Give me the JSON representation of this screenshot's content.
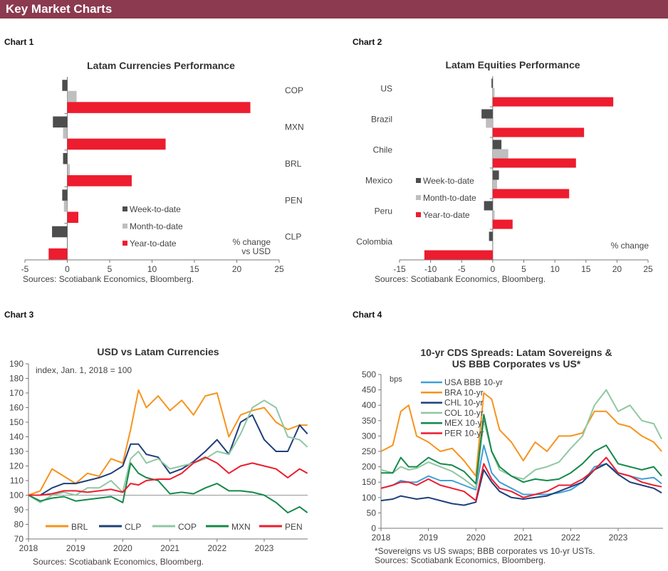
{
  "header": {
    "title": "Key Market Charts"
  },
  "chart_labels": [
    "Chart 1",
    "Chart 2",
    "Chart 3",
    "Chart 4"
  ],
  "colors": {
    "header": "#8b3a50",
    "wtd": "#4d4d4d",
    "mtd": "#bfbfbf",
    "ytd": "#ed1c2e"
  },
  "chart_data": [
    {
      "type": "bar",
      "orientation": "horizontal",
      "title": "Latam  Currencies Performance",
      "categories": [
        "COP",
        "MXN",
        "BRL",
        "PEN",
        "CLP"
      ],
      "series": [
        {
          "name": "Week-to-date",
          "color": "#4d4d4d",
          "values": [
            -0.6,
            -1.7,
            -0.5,
            -0.6,
            -1.8
          ]
        },
        {
          "name": "Month-to-date",
          "color": "#bfbfbf",
          "values": [
            1.1,
            -0.5,
            0.3,
            -0.4,
            0
          ]
        },
        {
          "name": "Year-to-date",
          "color": "#ed1c2e",
          "values": [
            21.6,
            11.6,
            7.6,
            1.3,
            -2.2
          ]
        }
      ],
      "xlim": [
        -5,
        25
      ],
      "xticks": [
        "-5",
        "0",
        "5",
        "10",
        "15",
        "20",
        "25"
      ],
      "unit_label": [
        "% change",
        "vs USD"
      ],
      "legend": "bottom-center",
      "source": "Sources: Scotiabank Economics, Bloomberg."
    },
    {
      "type": "bar",
      "orientation": "horizontal",
      "title": "Latam Equities Performance",
      "categories": [
        "US",
        "Brazil",
        "Chile",
        "Mexico",
        "Peru",
        "Colombia"
      ],
      "series": [
        {
          "name": "Week-to-date",
          "color": "#4d4d4d",
          "values": [
            -0.2,
            -1.8,
            1.4,
            1.0,
            -1.4,
            -0.6
          ]
        },
        {
          "name": "Month-to-date",
          "color": "#bfbfbf",
          "values": [
            0.3,
            -1.1,
            2.5,
            0.7,
            0.3,
            0
          ]
        },
        {
          "name": "Year-to-date",
          "color": "#ed1c2e",
          "values": [
            19.4,
            14.7,
            13.4,
            12.3,
            3.2,
            -11.0
          ]
        }
      ],
      "xlim": [
        -15,
        25
      ],
      "xticks": [
        "-15",
        "-10",
        "-5",
        "0",
        "5",
        "10",
        "15",
        "20",
        "25"
      ],
      "unit_label": [
        "% change"
      ],
      "legend": "left",
      "source": "Sources: Scotiabank Economics, Bloomberg."
    },
    {
      "type": "line",
      "title": "USD vs Latam Currencies",
      "annotation": "index, Jan. 1, 2018 = 100",
      "ylim": [
        70,
        190
      ],
      "yticks": [
        "70",
        "80",
        "90",
        "100",
        "110",
        "120",
        "130",
        "140",
        "150",
        "160",
        "170",
        "180",
        "190"
      ],
      "xticks": [
        "2018",
        "2019",
        "2020",
        "2021",
        "2022",
        "2023"
      ],
      "reference_line": 100,
      "legend": "bottom",
      "x": [
        "2018-01",
        "2018-04",
        "2018-07",
        "2018-10",
        "2019-01",
        "2019-04",
        "2019-07",
        "2019-10",
        "2020-01",
        "2020-03",
        "2020-05",
        "2020-07",
        "2020-10",
        "2021-01",
        "2021-04",
        "2021-07",
        "2021-10",
        "2022-01",
        "2022-04",
        "2022-07",
        "2022-10",
        "2023-01",
        "2023-04",
        "2023-07",
        "2023-10",
        "2023-12"
      ],
      "series": [
        {
          "name": "BRL",
          "color": "#f7931e",
          "values": [
            100,
            103,
            118,
            113,
            108,
            115,
            113,
            125,
            122,
            145,
            172,
            160,
            168,
            158,
            165,
            155,
            168,
            170,
            140,
            155,
            158,
            160,
            150,
            145,
            148,
            148
          ]
        },
        {
          "name": "CLP",
          "color": "#1f3f7a",
          "values": [
            100,
            100,
            105,
            108,
            108,
            110,
            112,
            115,
            120,
            135,
            135,
            128,
            126,
            115,
            118,
            123,
            130,
            138,
            128,
            150,
            155,
            138,
            130,
            130,
            148,
            142
          ]
        },
        {
          "name": "COP",
          "color": "#8fc7a3",
          "values": [
            100,
            95,
            100,
            102,
            100,
            105,
            105,
            110,
            102,
            125,
            130,
            122,
            125,
            118,
            120,
            122,
            125,
            130,
            128,
            142,
            160,
            165,
            160,
            140,
            138,
            133
          ]
        },
        {
          "name": "MXN",
          "color": "#14894a",
          "values": [
            100,
            96,
            98,
            99,
            96,
            97,
            98,
            99,
            95,
            122,
            115,
            112,
            110,
            101,
            102,
            101,
            105,
            108,
            103,
            103,
            102,
            100,
            95,
            88,
            92,
            88
          ]
        },
        {
          "name": "PEN",
          "color": "#ed1c2e",
          "values": [
            100,
            100,
            101,
            103,
            103,
            102,
            103,
            104,
            102,
            108,
            107,
            110,
            111,
            111,
            115,
            122,
            126,
            122,
            115,
            120,
            122,
            120,
            118,
            112,
            118,
            115
          ]
        }
      ],
      "source": "Sources: Scotiabank Economics, Bloomberg."
    },
    {
      "type": "line",
      "title": [
        "10-yr CDS Spreads: Latam Sovereigns &",
        "US BBB Corporates vs US*"
      ],
      "ylabel": "bps",
      "ylim": [
        0,
        500
      ],
      "yticks": [
        "0",
        "50",
        "100",
        "150",
        "200",
        "250",
        "300",
        "350",
        "400",
        "450",
        "500"
      ],
      "xticks": [
        "2018",
        "2019",
        "2020",
        "2021",
        "2022",
        "2023"
      ],
      "legend": "top-left",
      "x": [
        "2018-01",
        "2018-04",
        "2018-06",
        "2018-08",
        "2018-10",
        "2019-01",
        "2019-04",
        "2019-07",
        "2019-10",
        "2020-01",
        "2020-03",
        "2020-05",
        "2020-07",
        "2020-10",
        "2021-01",
        "2021-04",
        "2021-07",
        "2021-10",
        "2022-01",
        "2022-04",
        "2022-07",
        "2022-10",
        "2023-01",
        "2023-04",
        "2023-07",
        "2023-10",
        "2023-12"
      ],
      "series": [
        {
          "name": "USA BBB 10-yr",
          "color": "#3fa0d8",
          "values": [
            130,
            140,
            155,
            150,
            150,
            170,
            155,
            155,
            140,
            125,
            270,
            180,
            150,
            130,
            110,
            110,
            110,
            115,
            125,
            150,
            200,
            210,
            180,
            170,
            160,
            165,
            145
          ]
        },
        {
          "name": "BRA 10-yr",
          "color": "#f7931e",
          "values": [
            250,
            270,
            380,
            400,
            300,
            280,
            250,
            260,
            220,
            170,
            440,
            420,
            320,
            280,
            220,
            280,
            250,
            300,
            300,
            310,
            380,
            380,
            340,
            330,
            300,
            280,
            250
          ]
        },
        {
          "name": "CHL 10-yr",
          "color": "#1f3f7a",
          "values": [
            90,
            95,
            105,
            100,
            95,
            100,
            90,
            80,
            75,
            85,
            190,
            150,
            120,
            100,
            95,
            100,
            105,
            120,
            135,
            150,
            190,
            210,
            175,
            150,
            140,
            130,
            115
          ]
        },
        {
          "name": "COL 10-yr",
          "color": "#8fc7a3",
          "values": [
            190,
            180,
            200,
            190,
            195,
            215,
            200,
            185,
            160,
            130,
            350,
            250,
            190,
            170,
            160,
            190,
            200,
            215,
            260,
            300,
            400,
            450,
            380,
            400,
            350,
            340,
            290
          ]
        },
        {
          "name": "MEX 10-yr",
          "color": "#14894a",
          "values": [
            180,
            180,
            230,
            200,
            200,
            230,
            210,
            205,
            185,
            145,
            370,
            250,
            200,
            170,
            150,
            160,
            155,
            160,
            180,
            210,
            250,
            270,
            210,
            200,
            190,
            200,
            170
          ]
        },
        {
          "name": "PER 10-yr",
          "color": "#ed1c2e",
          "values": [
            130,
            140,
            150,
            150,
            140,
            160,
            140,
            130,
            120,
            90,
            210,
            160,
            130,
            120,
            100,
            110,
            120,
            140,
            140,
            160,
            190,
            230,
            180,
            170,
            150,
            140,
            135
          ]
        }
      ],
      "footnote": "*Sovereigns vs US swaps; BBB corporates vs 10-yr USTs.",
      "source": "Sources: Scotiabank Economics, Bloomberg."
    }
  ]
}
